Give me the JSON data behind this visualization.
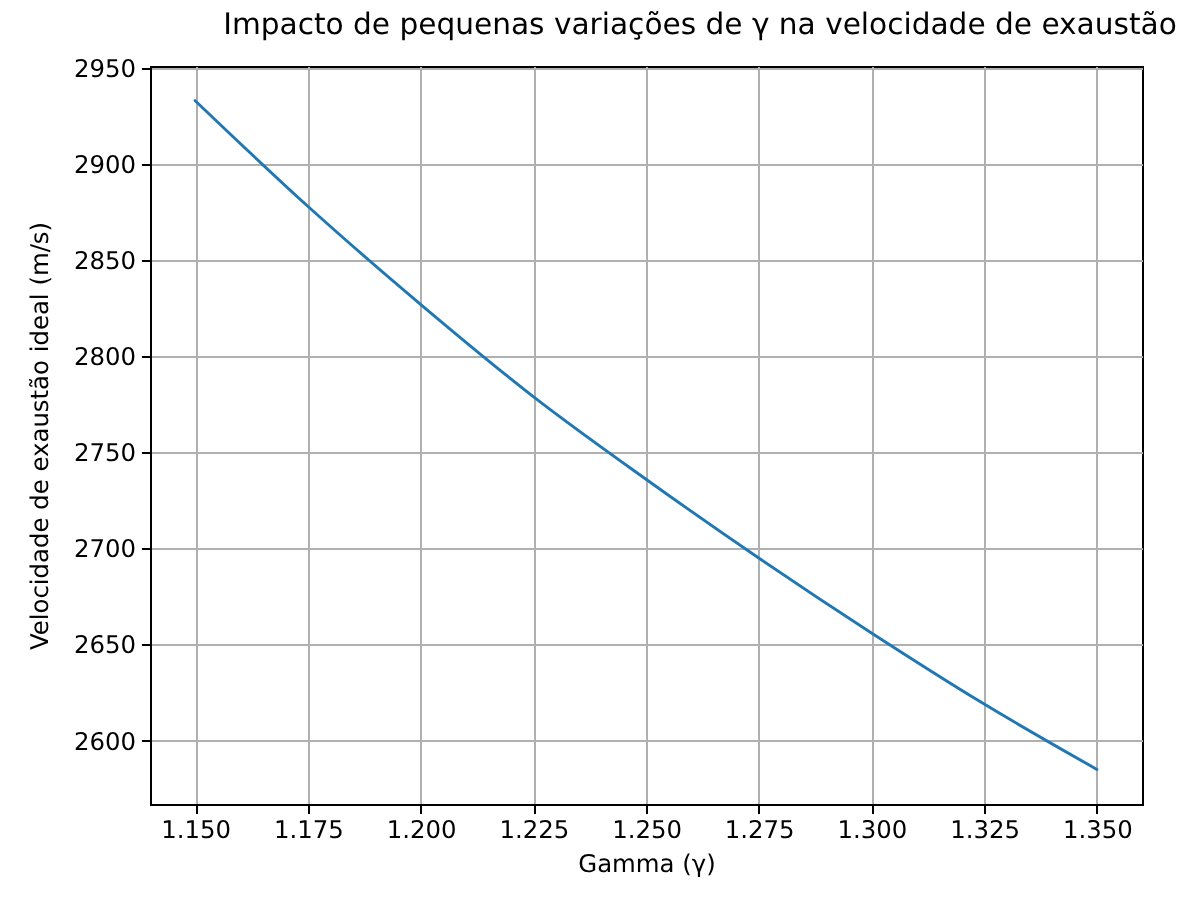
{
  "chart_data": {
    "type": "line",
    "title": "Impacto de pequenas variações de γ na velocidade de exaustão",
    "xlabel": "Gamma (γ)",
    "ylabel": "Velocidade de exaustão ideal (m/s)",
    "x": [
      1.15,
      1.175,
      1.2,
      1.225,
      1.25,
      1.275,
      1.3,
      1.325,
      1.35
    ],
    "series": [
      {
        "color": "#1f77b4",
        "values": [
          2933,
          2878,
          2827,
          2779,
          2736,
          2695,
          2656,
          2619,
          2585
        ]
      }
    ],
    "xlim": [
      1.14,
      1.36
    ],
    "ylim": [
      2567,
      2951
    ],
    "xticks": [
      {
        "value": 1.15,
        "label": "1.150"
      },
      {
        "value": 1.175,
        "label": "1.175"
      },
      {
        "value": 1.2,
        "label": "1.200"
      },
      {
        "value": 1.225,
        "label": "1.225"
      },
      {
        "value": 1.25,
        "label": "1.250"
      },
      {
        "value": 1.275,
        "label": "1.275"
      },
      {
        "value": 1.3,
        "label": "1.300"
      },
      {
        "value": 1.325,
        "label": "1.325"
      },
      {
        "value": 1.35,
        "label": "1.350"
      }
    ],
    "yticks": [
      2600,
      2650,
      2700,
      2750,
      2800,
      2850,
      2900,
      2950
    ],
    "grid": true
  }
}
